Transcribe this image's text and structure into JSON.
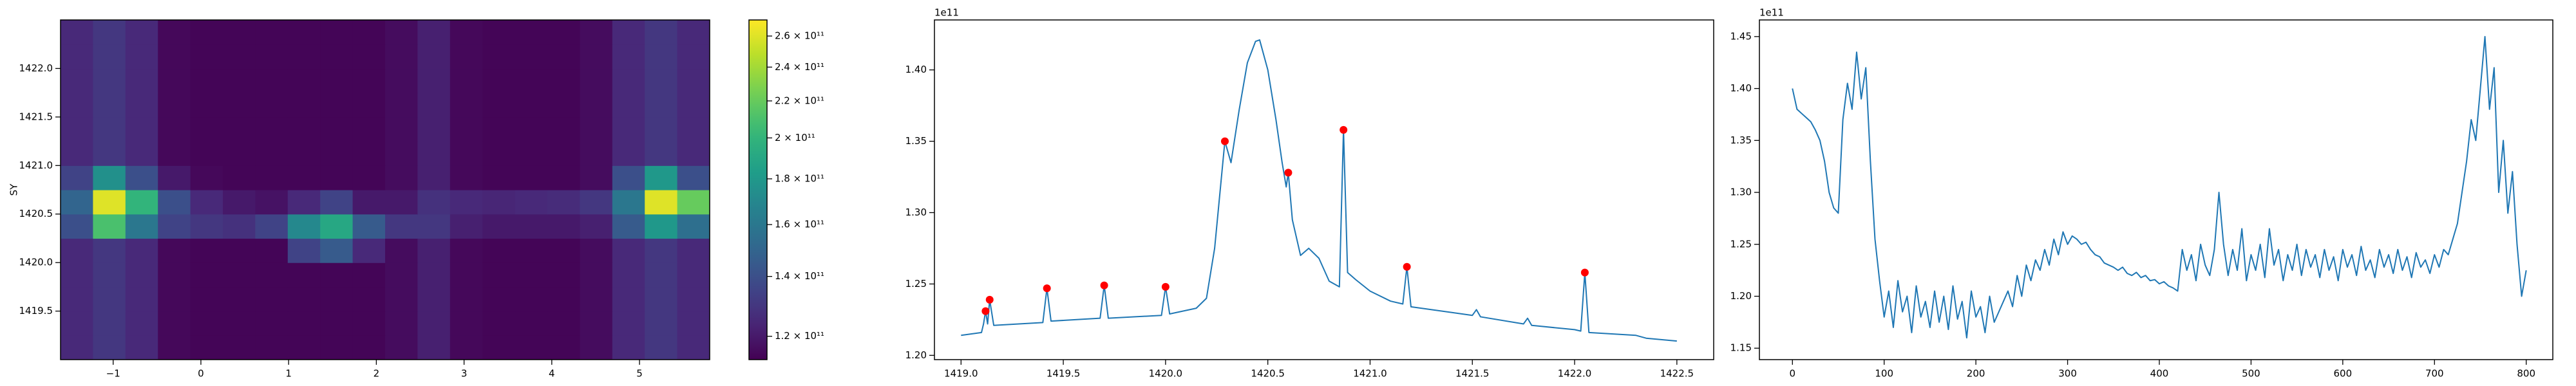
{
  "chart_data": [
    {
      "type": "heatmap",
      "ylabel": "SY",
      "colormap": "viridis",
      "log_color": true,
      "xlim": [
        -1.6,
        5.8
      ],
      "ylim": [
        1419.0,
        1422.5
      ],
      "xticks": [
        {
          "value": -1,
          "label": "−1"
        },
        0,
        1,
        2,
        3,
        4,
        5
      ],
      "yticks": [
        {
          "value": 1419.5,
          "label": "1419.5"
        },
        {
          "value": 1420.0,
          "label": "1420.0"
        },
        {
          "value": 1420.5,
          "label": "1420.5"
        },
        {
          "value": 1421.0,
          "label": "1421.0"
        },
        {
          "value": 1421.5,
          "label": "1421.5"
        },
        {
          "value": 1422.0,
          "label": "1422.0"
        }
      ],
      "xbins": [
        -1.6,
        -1.23,
        -0.86,
        -0.49,
        -0.12,
        0.25,
        0.62,
        0.99,
        1.36,
        1.73,
        2.1,
        2.47,
        2.84,
        3.21,
        3.58,
        3.95,
        4.32,
        4.69,
        5.06,
        5.43,
        5.8
      ],
      "ybins": [
        1419.0,
        1419.25,
        1419.5,
        1419.75,
        1420.0,
        1420.25,
        1420.5,
        1420.75,
        1421.0,
        1421.25,
        1421.5,
        1421.75,
        1422.0,
        1422.25,
        1422.5
      ],
      "z": [
        [
          125000000000.0,
          130000000000.0,
          125000000000.0,
          115000000000.0,
          114000000000.0,
          114000000000.0,
          114000000000.0,
          114000000000.0,
          114000000000.0,
          114000000000.0,
          116000000000.0,
          122000000000.0,
          115000000000.0,
          114000000000.0,
          114000000000.0,
          114000000000.0,
          116000000000.0,
          125000000000.0,
          130000000000.0,
          125000000000.0
        ],
        [
          125000000000.0,
          130000000000.0,
          125000000000.0,
          115000000000.0,
          114000000000.0,
          114000000000.0,
          114000000000.0,
          114000000000.0,
          114000000000.0,
          114000000000.0,
          116000000000.0,
          122000000000.0,
          115000000000.0,
          114000000000.0,
          114000000000.0,
          114000000000.0,
          116000000000.0,
          125000000000.0,
          130000000000.0,
          125000000000.0
        ],
        [
          125000000000.0,
          130000000000.0,
          125000000000.0,
          115000000000.0,
          114000000000.0,
          114000000000.0,
          114000000000.0,
          114000000000.0,
          114000000000.0,
          114000000000.0,
          116000000000.0,
          122000000000.0,
          115000000000.0,
          114000000000.0,
          114000000000.0,
          114000000000.0,
          116000000000.0,
          125000000000.0,
          130000000000.0,
          125000000000.0
        ],
        [
          125000000000.0,
          130000000000.0,
          125000000000.0,
          115000000000.0,
          114000000000.0,
          114000000000.0,
          114000000000.0,
          114000000000.0,
          114000000000.0,
          114000000000.0,
          116000000000.0,
          122000000000.0,
          115000000000.0,
          114000000000.0,
          114000000000.0,
          114000000000.0,
          116000000000.0,
          125000000000.0,
          130000000000.0,
          125000000000.0
        ],
        [
          125000000000.0,
          130000000000.0,
          125000000000.0,
          115000000000.0,
          114000000000.0,
          114000000000.0,
          114000000000.0,
          135000000000.0,
          145000000000.0,
          125000000000.0,
          116000000000.0,
          122000000000.0,
          115000000000.0,
          114000000000.0,
          114000000000.0,
          114000000000.0,
          116000000000.0,
          125000000000.0,
          130000000000.0,
          125000000000.0
        ],
        [
          140000000000.0,
          210000000000.0,
          160000000000.0,
          135000000000.0,
          130000000000.0,
          128000000000.0,
          135000000000.0,
          170000000000.0,
          190000000000.0,
          145000000000.0,
          130000000000.0,
          130000000000.0,
          122000000000.0,
          120000000000.0,
          120000000000.0,
          120000000000.0,
          122000000000.0,
          145000000000.0,
          180000000000.0,
          155000000000.0
        ],
        [
          150000000000.0,
          260000000000.0,
          200000000000.0,
          140000000000.0,
          125000000000.0,
          120000000000.0,
          118000000000.0,
          125000000000.0,
          135000000000.0,
          120000000000.0,
          120000000000.0,
          128000000000.0,
          125000000000.0,
          124000000000.0,
          125000000000.0,
          126000000000.0,
          130000000000.0,
          160000000000.0,
          260000000000.0,
          220000000000.0
        ],
        [
          135000000000.0,
          175000000000.0,
          140000000000.0,
          120000000000.0,
          115000000000.0,
          114000000000.0,
          114000000000.0,
          114000000000.0,
          114000000000.0,
          114000000000.0,
          116000000000.0,
          122000000000.0,
          115000000000.0,
          114000000000.0,
          114000000000.0,
          114000000000.0,
          116000000000.0,
          140000000000.0,
          180000000000.0,
          140000000000.0
        ],
        [
          125000000000.0,
          130000000000.0,
          125000000000.0,
          115000000000.0,
          114000000000.0,
          114000000000.0,
          114000000000.0,
          114000000000.0,
          114000000000.0,
          114000000000.0,
          116000000000.0,
          122000000000.0,
          115000000000.0,
          114000000000.0,
          114000000000.0,
          114000000000.0,
          116000000000.0,
          125000000000.0,
          130000000000.0,
          125000000000.0
        ],
        [
          125000000000.0,
          130000000000.0,
          125000000000.0,
          115000000000.0,
          114000000000.0,
          114000000000.0,
          114000000000.0,
          114000000000.0,
          114000000000.0,
          114000000000.0,
          116000000000.0,
          122000000000.0,
          115000000000.0,
          114000000000.0,
          114000000000.0,
          114000000000.0,
          116000000000.0,
          125000000000.0,
          130000000000.0,
          125000000000.0
        ],
        [
          125000000000.0,
          130000000000.0,
          125000000000.0,
          115000000000.0,
          114000000000.0,
          114000000000.0,
          114000000000.0,
          114000000000.0,
          114000000000.0,
          114000000000.0,
          116000000000.0,
          122000000000.0,
          115000000000.0,
          114000000000.0,
          114000000000.0,
          114000000000.0,
          116000000000.0,
          125000000000.0,
          130000000000.0,
          125000000000.0
        ],
        [
          125000000000.0,
          130000000000.0,
          125000000000.0,
          115000000000.0,
          114000000000.0,
          114000000000.0,
          114000000000.0,
          114000000000.0,
          114000000000.0,
          114000000000.0,
          116000000000.0,
          122000000000.0,
          115000000000.0,
          114000000000.0,
          114000000000.0,
          114000000000.0,
          116000000000.0,
          125000000000.0,
          130000000000.0,
          125000000000.0
        ],
        [
          125000000000.0,
          130000000000.0,
          125000000000.0,
          115000000000.0,
          114000000000.0,
          114000000000.0,
          114000000000.0,
          114000000000.0,
          114000000000.0,
          114000000000.0,
          116000000000.0,
          122000000000.0,
          115000000000.0,
          114000000000.0,
          114000000000.0,
          114000000000.0,
          116000000000.0,
          125000000000.0,
          130000000000.0,
          125000000000.0
        ],
        [
          125000000000.0,
          130000000000.0,
          125000000000.0,
          115000000000.0,
          114000000000.0,
          114000000000.0,
          114000000000.0,
          114000000000.0,
          114000000000.0,
          114000000000.0,
          116000000000.0,
          122000000000.0,
          115000000000.0,
          114000000000.0,
          114000000000.0,
          114000000000.0,
          116000000000.0,
          125000000000.0,
          130000000000.0,
          125000000000.0
        ]
      ],
      "clim": [
        113000000000.0,
        271000000000.0
      ],
      "cticks": [
        {
          "value": 120000000000.0,
          "label": "1.2 × 10¹¹"
        },
        {
          "value": 140000000000.0,
          "label": "1.4 × 10¹¹"
        },
        {
          "value": 160000000000.0,
          "label": "1.6 × 10¹¹"
        },
        {
          "value": 180000000000.0,
          "label": "1.8 × 10¹¹"
        },
        {
          "value": 200000000000.0,
          "label": "2 × 10¹¹"
        },
        {
          "value": 220000000000.0,
          "label": "2.2 × 10¹¹"
        },
        {
          "value": 240000000000.0,
          "label": "2.4 × 10¹¹"
        },
        {
          "value": 260000000000.0,
          "label": "2.6 × 10¹¹"
        }
      ]
    },
    {
      "type": "line",
      "offset_text": "1e11",
      "color": "#1f77b4",
      "xlim": [
        1418.87,
        1422.68
      ],
      "ylim": [
        1.197,
        1.435
      ],
      "xticks": [
        {
          "value": 1419.0,
          "label": "1419.0"
        },
        {
          "value": 1419.5,
          "label": "1419.5"
        },
        {
          "value": 1420.0,
          "label": "1420.0"
        },
        {
          "value": 1420.5,
          "label": "1420.5"
        },
        {
          "value": 1421.0,
          "label": "1421.0"
        },
        {
          "value": 1421.5,
          "label": "1421.5"
        },
        {
          "value": 1422.0,
          "label": "1422.0"
        },
        {
          "value": 1422.5,
          "label": "1422.5"
        }
      ],
      "yticks": [
        {
          "value": 1.2,
          "label": "1.20"
        },
        1.25,
        {
          "value": 1.3,
          "label": "1.30"
        },
        1.35,
        {
          "value": 1.4,
          "label": "1.40"
        }
      ],
      "x": [
        1419.0,
        1419.1,
        1419.11,
        1419.12,
        1419.13,
        1419.14,
        1419.16,
        1419.4,
        1419.42,
        1419.44,
        1419.68,
        1419.7,
        1419.72,
        1419.98,
        1420.0,
        1420.02,
        1420.15,
        1420.2,
        1420.24,
        1420.27,
        1420.29,
        1420.32,
        1420.36,
        1420.4,
        1420.44,
        1420.46,
        1420.5,
        1420.54,
        1420.57,
        1420.59,
        1420.6,
        1420.62,
        1420.66,
        1420.7,
        1420.75,
        1420.8,
        1420.85,
        1420.87,
        1420.89,
        1420.93,
        1421.0,
        1421.1,
        1421.16,
        1421.18,
        1421.2,
        1421.4,
        1421.5,
        1421.52,
        1421.54,
        1421.75,
        1421.77,
        1421.79,
        1422.0,
        1422.03,
        1422.05,
        1422.07,
        1422.3,
        1422.35,
        1422.5
      ],
      "values": [
        1.214,
        1.216,
        1.222,
        1.231,
        1.222,
        1.239,
        1.221,
        1.223,
        1.247,
        1.224,
        1.226,
        1.249,
        1.226,
        1.228,
        1.248,
        1.229,
        1.233,
        1.24,
        1.275,
        1.32,
        1.35,
        1.335,
        1.372,
        1.405,
        1.42,
        1.421,
        1.4,
        1.365,
        1.335,
        1.318,
        1.328,
        1.295,
        1.27,
        1.275,
        1.268,
        1.252,
        1.248,
        1.358,
        1.258,
        1.253,
        1.245,
        1.238,
        1.236,
        1.262,
        1.234,
        1.23,
        1.228,
        1.232,
        1.227,
        1.222,
        1.226,
        1.221,
        1.218,
        1.217,
        1.258,
        1.216,
        1.214,
        1.212,
        1.21
      ],
      "peaks": {
        "color": "red",
        "x": [
          1419.12,
          1419.14,
          1419.42,
          1419.7,
          1420.0,
          1420.29,
          1420.6,
          1420.87,
          1421.18,
          1422.05
        ],
        "values": [
          1.231,
          1.239,
          1.247,
          1.249,
          1.248,
          1.35,
          1.328,
          1.358,
          1.262,
          1.258
        ]
      }
    },
    {
      "type": "line",
      "offset_text": "1e11",
      "color": "#1f77b4",
      "xlim": [
        -36,
        829
      ],
      "ylim": [
        1.139,
        1.466
      ],
      "xticks": [
        0,
        100,
        200,
        300,
        400,
        500,
        600,
        700,
        800
      ],
      "yticks": [
        1.15,
        {
          "value": 1.2,
          "label": "1.20"
        },
        1.25,
        {
          "value": 1.3,
          "label": "1.30"
        },
        1.35,
        {
          "value": 1.4,
          "label": "1.40"
        },
        1.45
      ],
      "x": [
        0,
        5,
        10,
        15,
        20,
        25,
        30,
        35,
        40,
        45,
        50,
        55,
        60,
        65,
        70,
        75,
        80,
        85,
        90,
        95,
        100,
        105,
        110,
        115,
        120,
        125,
        130,
        135,
        140,
        145,
        150,
        155,
        160,
        165,
        170,
        175,
        180,
        185,
        190,
        195,
        200,
        205,
        210,
        215,
        220,
        225,
        230,
        235,
        240,
        245,
        250,
        255,
        260,
        265,
        270,
        275,
        280,
        285,
        290,
        295,
        300,
        305,
        310,
        315,
        320,
        325,
        330,
        335,
        340,
        345,
        350,
        355,
        360,
        365,
        370,
        375,
        380,
        385,
        390,
        395,
        400,
        405,
        410,
        415,
        420,
        425,
        430,
        435,
        440,
        445,
        450,
        455,
        460,
        465,
        470,
        475,
        480,
        485,
        490,
        495,
        500,
        505,
        510,
        515,
        520,
        525,
        530,
        535,
        540,
        545,
        550,
        555,
        560,
        565,
        570,
        575,
        580,
        585,
        590,
        595,
        600,
        605,
        610,
        615,
        620,
        625,
        630,
        635,
        640,
        645,
        650,
        655,
        660,
        665,
        670,
        675,
        680,
        685,
        690,
        695,
        700,
        705,
        710,
        715,
        720,
        725,
        730,
        735,
        740,
        745,
        750,
        755,
        760,
        765,
        770,
        775,
        780,
        785,
        790,
        795,
        800
      ],
      "values": [
        1.4,
        1.38,
        1.376,
        1.372,
        1.368,
        1.36,
        1.35,
        1.33,
        1.3,
        1.285,
        1.28,
        1.37,
        1.405,
        1.38,
        1.435,
        1.39,
        1.42,
        1.33,
        1.255,
        1.215,
        1.18,
        1.205,
        1.17,
        1.215,
        1.185,
        1.2,
        1.165,
        1.21,
        1.18,
        1.195,
        1.17,
        1.205,
        1.175,
        1.2,
        1.168,
        1.21,
        1.178,
        1.195,
        1.16,
        1.205,
        1.18,
        1.19,
        1.165,
        1.2,
        1.175,
        1.185,
        1.195,
        1.205,
        1.19,
        1.22,
        1.2,
        1.23,
        1.215,
        1.235,
        1.225,
        1.245,
        1.23,
        1.255,
        1.24,
        1.262,
        1.25,
        1.258,
        1.255,
        1.25,
        1.252,
        1.245,
        1.24,
        1.238,
        1.232,
        1.23,
        1.228,
        1.225,
        1.228,
        1.222,
        1.22,
        1.223,
        1.218,
        1.22,
        1.215,
        1.216,
        1.212,
        1.214,
        1.21,
        1.208,
        1.205,
        1.245,
        1.225,
        1.24,
        1.215,
        1.25,
        1.23,
        1.22,
        1.245,
        1.3,
        1.25,
        1.22,
        1.245,
        1.225,
        1.265,
        1.215,
        1.24,
        1.225,
        1.25,
        1.218,
        1.265,
        1.23,
        1.245,
        1.215,
        1.24,
        1.225,
        1.25,
        1.22,
        1.245,
        1.228,
        1.24,
        1.218,
        1.245,
        1.225,
        1.238,
        1.215,
        1.245,
        1.228,
        1.24,
        1.22,
        1.248,
        1.225,
        1.235,
        1.218,
        1.245,
        1.228,
        1.24,
        1.222,
        1.245,
        1.225,
        1.238,
        1.218,
        1.242,
        1.228,
        1.235,
        1.222,
        1.24,
        1.228,
        1.245,
        1.24,
        1.255,
        1.27,
        1.3,
        1.33,
        1.37,
        1.35,
        1.4,
        1.45,
        1.38,
        1.42,
        1.3,
        1.35,
        1.28,
        1.32,
        1.25,
        1.2,
        1.225
      ]
    }
  ]
}
